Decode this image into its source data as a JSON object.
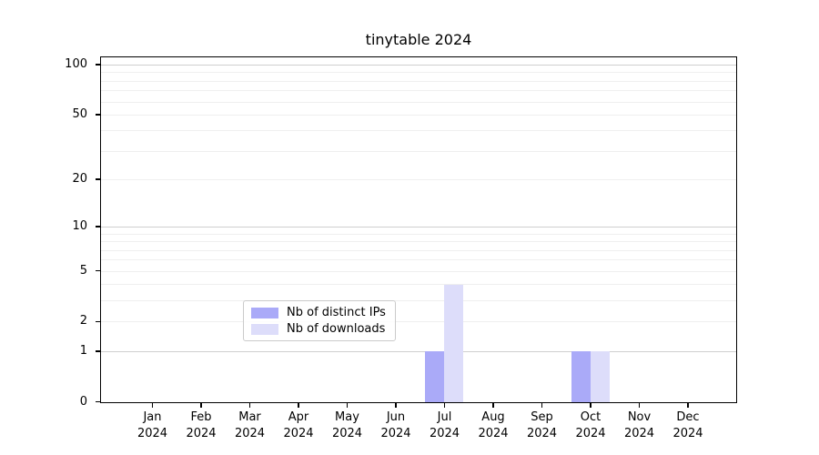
{
  "title": "tinytable 2024",
  "chart_data": {
    "type": "bar",
    "title": "tinytable 2024",
    "scale": "log1p",
    "x_categories": [
      "Jan",
      "Feb",
      "Mar",
      "Apr",
      "May",
      "Jun",
      "Jul",
      "Aug",
      "Sep",
      "Oct",
      "Nov",
      "Dec"
    ],
    "x_year": "2024",
    "series": [
      {
        "name": "Nb of distinct IPs",
        "color": "#aaaaf8",
        "values": [
          0,
          0,
          0,
          0,
          0,
          0,
          1,
          0,
          0,
          1,
          0,
          0
        ]
      },
      {
        "name": "Nb of downloads",
        "color": "#ddddfa",
        "values": [
          0,
          0,
          0,
          0,
          0,
          0,
          4,
          0,
          0,
          1,
          0,
          0
        ]
      }
    ],
    "y_ticks": [
      0,
      1,
      2,
      5,
      10,
      20,
      50,
      100
    ],
    "ylim": [
      0,
      110
    ],
    "grid": true,
    "grid_major": [
      1,
      10,
      100
    ],
    "grid_minor": [
      2,
      3,
      4,
      5,
      6,
      7,
      8,
      9,
      20,
      30,
      40,
      50,
      60,
      70,
      80,
      90
    ],
    "legend_position": "lower center"
  }
}
